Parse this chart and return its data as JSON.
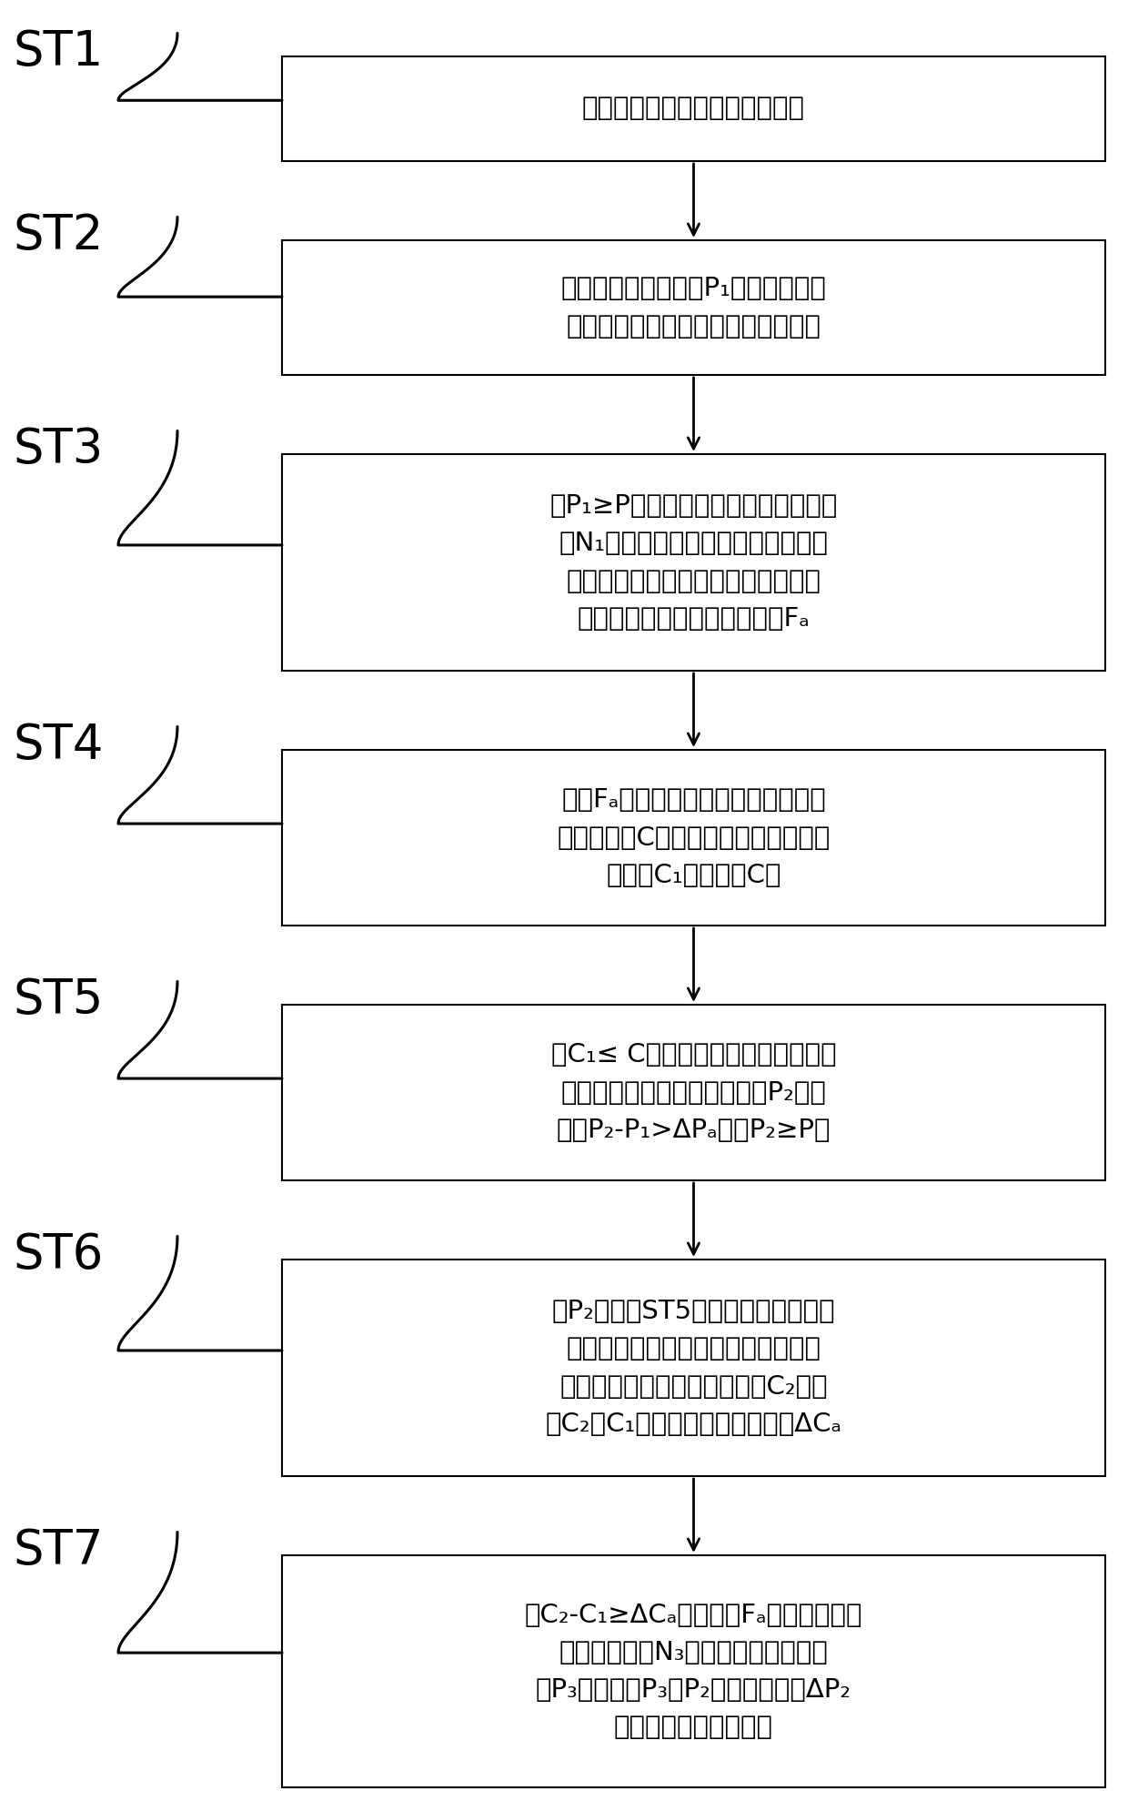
{
  "steps": [
    {
      "label": "ST1",
      "text": "启动空调器，检测室外环境温度",
      "nlines": 1
    },
    {
      "label": "ST2",
      "text": "检测第一冷媒压力值P₁，判断第一冷\n媒压力值是否不低于冷媒预设压力值",
      "nlines": 2
    },
    {
      "label": "ST3",
      "text": "若P₁≥P预，启动压缩机，运行预设时\n间N₁，获取空调当前的运行模式，当\n前室内环境温度和湿度，从预存储关\n系中，查询对应的压缩机频率Fₐ",
      "nlines": 4
    },
    {
      "label": "ST4",
      "text": "查找Fₐ频率下，对应湿度和温度的冷\n媒浓度阈值C预，判断室内机管路的冷\n媒浓度C₁是否大于C预",
      "nlines": 3
    },
    {
      "label": "ST5",
      "text": "若C₁≤ C预，调高压缩机频率，检测\n压缩机高频下冷媒第二压力值P₂，并\n判断P₂-P₁>ΔPₐ，且P₂≥P预",
      "nlines": 3
    },
    {
      "label": "ST6",
      "text": "若P₂不满足ST5中的判断条件，关闭\n压缩机，开启风机，更换空调所在空\n间的气体，检测冷媒第二浓度C₂，判\n断C₂与C₁的差值是否小于预设的ΔCₐ",
      "nlines": 4
    },
    {
      "label": "ST7",
      "text": "若C₂-C₁≥ΔCₐ，再次以Fₐ频率运行压缩\n机，运行时间N₃，检测冷媒第三压力\n值P₃，并通过P₃与P₂的差值与预设ΔP₂\n判断冷媒是否发生泄露",
      "nlines": 4
    }
  ],
  "bg_color": "#ffffff",
  "box_color": "#000000",
  "text_color": "#000000",
  "label_color": "#000000",
  "arrow_color": "#000000",
  "fig_width": 12.4,
  "fig_height": 19.79,
  "dpi": 100
}
